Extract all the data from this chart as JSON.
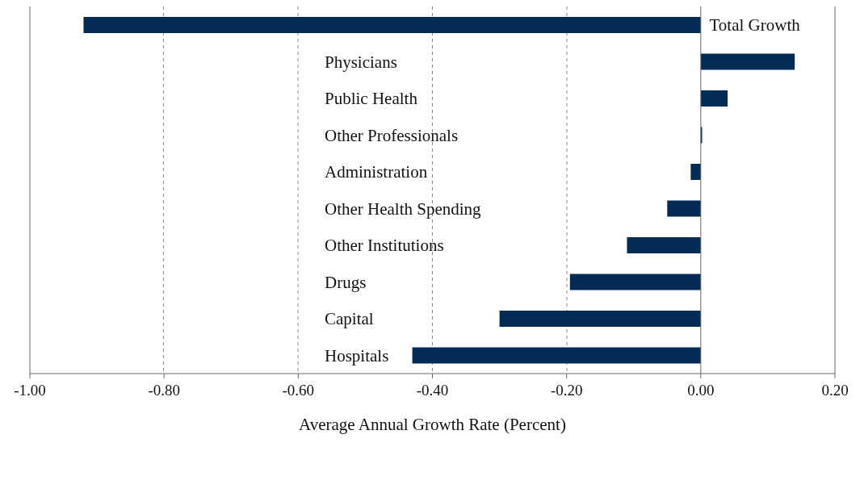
{
  "chart_data": {
    "type": "bar",
    "orientation": "horizontal",
    "xlabel": "Average Annual Growth Rate (Percent)",
    "categories": [
      "Total Growth",
      "Physicians",
      "Public Health",
      "Other Professionals",
      "Administration",
      "Other Health Spending",
      "Other  Institutions",
      "Drugs",
      "Capital",
      "Hospitals"
    ],
    "values": [
      -0.92,
      0.14,
      0.04,
      0.002,
      -0.015,
      -0.05,
      -0.11,
      -0.195,
      -0.3,
      -0.43
    ],
    "color": "#002b54",
    "xlim": [
      -1,
      0.2
    ],
    "xticks": [
      {
        "value": -1,
        "label": "-1.00"
      },
      {
        "value": -0.8,
        "label": "-0.80"
      },
      {
        "value": -0.6,
        "label": "-0.60"
      },
      {
        "value": -0.4,
        "label": "-0.40"
      },
      {
        "value": -0.2,
        "label": "-0.20"
      },
      {
        "value": 0,
        "label": "0.00"
      },
      {
        "value": 0.2,
        "label": "0.20"
      }
    ],
    "grid": "x"
  }
}
